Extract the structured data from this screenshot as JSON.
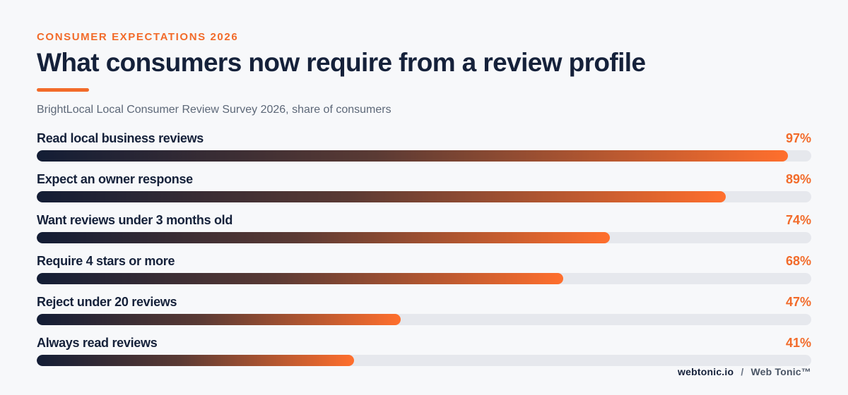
{
  "header": {
    "kicker": "CONSUMER EXPECTATIONS 2026",
    "title": "What consumers now require from a review profile",
    "subtitle": "BrightLocal Local Consumer Review Survey 2026, share of consumers"
  },
  "colors": {
    "accent": "#f26b2a",
    "navy": "#15213a",
    "track": "#e6e8ed",
    "gradient_start": "#131d35",
    "gradient_end": "#ff6f2d"
  },
  "chart_data": {
    "type": "bar",
    "orientation": "horizontal",
    "title": "What consumers now require from a review profile",
    "subtitle": "BrightLocal Local Consumer Review Survey 2026, share of consumers",
    "xlim": [
      0,
      100
    ],
    "grid": false,
    "categories": [
      "Read local business reviews",
      "Expect an owner response",
      "Want reviews under 3 months old",
      "Require 4 stars or more",
      "Reject under 20 reviews",
      "Always read reviews"
    ],
    "values": [
      97,
      89,
      74,
      68,
      47,
      41
    ],
    "value_labels": [
      "97%",
      "89%",
      "74%",
      "68%",
      "47%",
      "41%"
    ]
  },
  "footer": {
    "site": "webtonic.io",
    "separator": "/",
    "brand": "Web Tonic™"
  }
}
